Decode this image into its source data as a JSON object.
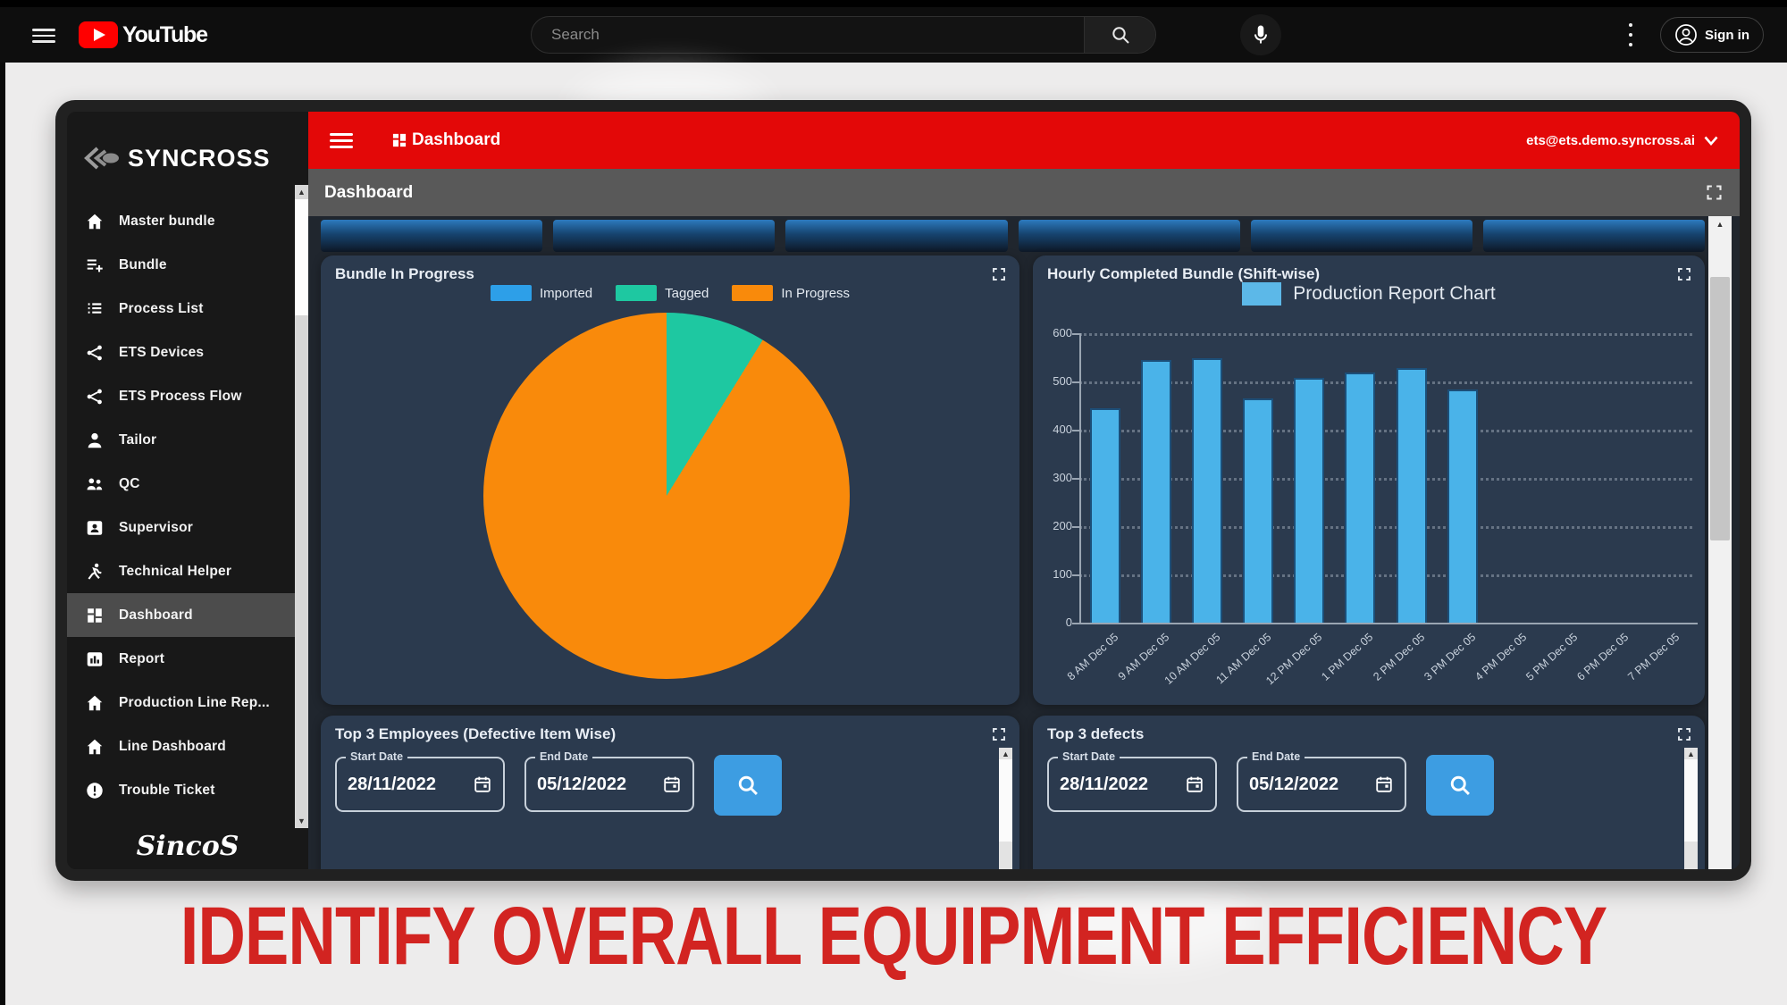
{
  "youtube": {
    "logo_text": "YouTube",
    "search_placeholder": "Search",
    "signin_label": "Sign in"
  },
  "app": {
    "brand": "SYNCROSS",
    "footer_brand": "SincoS",
    "header": {
      "title": "Dashboard",
      "user_email": "ets@ets.demo.syncross.ai"
    },
    "page_title": "Dashboard",
    "sidebar_items": [
      {
        "label": "Master bundle",
        "icon": "home",
        "active": false
      },
      {
        "label": "Bundle",
        "icon": "bundle-add",
        "active": false
      },
      {
        "label": "Process List",
        "icon": "process-list",
        "active": false
      },
      {
        "label": "ETS Devices",
        "icon": "device-network",
        "active": false
      },
      {
        "label": "ETS Process Flow",
        "icon": "process-flow",
        "active": false
      },
      {
        "label": "Tailor",
        "icon": "person",
        "active": false
      },
      {
        "label": "QC",
        "icon": "people",
        "active": false
      },
      {
        "label": "Supervisor",
        "icon": "supervisor-card",
        "active": false
      },
      {
        "label": "Technical Helper",
        "icon": "runner",
        "active": false
      },
      {
        "label": "Dashboard",
        "icon": "dashboard-grid",
        "active": true
      },
      {
        "label": "Report",
        "icon": "report-chart",
        "active": false
      },
      {
        "label": "Production Line Rep...",
        "icon": "home",
        "active": false
      },
      {
        "label": "Line Dashboard",
        "icon": "home",
        "active": false
      },
      {
        "label": "Trouble Ticket",
        "icon": "alert-circle",
        "active": false
      }
    ],
    "filters": {
      "employees": {
        "title": "Top 3 Employees (Defective Item Wise)",
        "start_label": "Start Date",
        "start_value": "28/11/2022",
        "end_label": "End Date",
        "end_value": "05/12/2022"
      },
      "defects": {
        "title": "Top 3 defects",
        "start_label": "Start Date",
        "start_value": "28/11/2022",
        "end_label": "End Date",
        "end_value": "05/12/2022"
      }
    }
  },
  "chart_data": [
    {
      "type": "pie",
      "title": "Bundle In Progress",
      "legend_position": "top",
      "labels": [
        "Imported",
        "Tagged",
        "In Progress"
      ],
      "values_percent": [
        0,
        8.8,
        91.2
      ],
      "colors": [
        "#2d9fe8",
        "#1ec8a1",
        "#f98a0b"
      ]
    },
    {
      "type": "bar",
      "title": "Hourly Completed Bundle (Shift-wise)",
      "categories": [
        "8 AM Dec 05",
        "9 AM Dec 05",
        "10 AM Dec 05",
        "11 AM Dec 05",
        "12 PM Dec 05",
        "1 PM Dec 05",
        "2 PM Dec 05",
        "3 PM Dec 05",
        "4 PM Dec 05",
        "5 PM Dec 05",
        "6 PM Dec 05",
        "7 PM Dec 05"
      ],
      "series": [
        {
          "name": "Production Report Chart",
          "values": [
            445,
            545,
            548,
            465,
            508,
            518,
            528,
            483,
            null,
            null,
            null,
            null
          ]
        }
      ],
      "ylim": [
        0,
        600
      ],
      "yticks": [
        0,
        100,
        200,
        300,
        400,
        500,
        600
      ],
      "bar_color": "#4ab3e9",
      "grid": "horizontal dotted",
      "legend_position": "top"
    }
  ],
  "headline": "IDENTIFY OVERALL EQUIPMENT EFFICIENCY",
  "colors": {
    "accent_red": "#e30808",
    "panel_bg": "#2b3a4e",
    "content_bg": "#20262e",
    "search_button_blue": "#3d9de2",
    "headline_red": "#d22421"
  }
}
